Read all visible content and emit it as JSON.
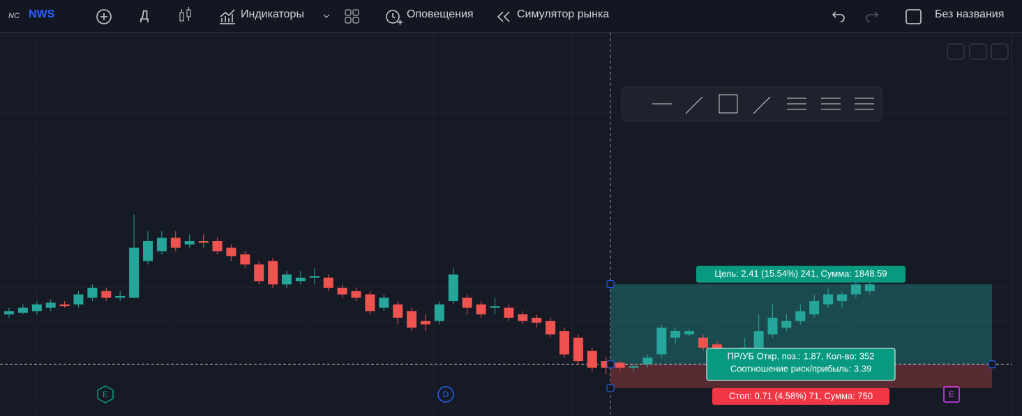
{
  "toolbar": {
    "symbol": "NWS",
    "interval": "Д",
    "indicators": "Индикаторы",
    "alerts": "Оповещения",
    "replay": "Симулятор рынка",
    "layout": "Без названия"
  },
  "chart_data": {
    "type": "candlestick",
    "ylim": [
      13.95,
      25.35
    ],
    "ohlc": [
      [
        17.0,
        17.2,
        16.9,
        17.1
      ],
      [
        17.05,
        17.3,
        17.0,
        17.2
      ],
      [
        17.1,
        17.4,
        17.0,
        17.3
      ],
      [
        17.2,
        17.45,
        17.1,
        17.35
      ],
      [
        17.3,
        17.4,
        17.2,
        17.25
      ],
      [
        17.3,
        17.7,
        17.2,
        17.6
      ],
      [
        17.5,
        17.9,
        17.4,
        17.8
      ],
      [
        17.7,
        17.8,
        17.4,
        17.5
      ],
      [
        17.5,
        17.7,
        17.4,
        17.55
      ],
      [
        17.5,
        20.0,
        17.5,
        19.0
      ],
      [
        18.6,
        19.5,
        18.5,
        19.2
      ],
      [
        18.9,
        19.5,
        18.8,
        19.3
      ],
      [
        19.3,
        19.5,
        18.9,
        19.0
      ],
      [
        19.1,
        19.4,
        19.0,
        19.2
      ],
      [
        19.2,
        19.4,
        19.0,
        19.15
      ],
      [
        19.2,
        19.3,
        18.8,
        18.9
      ],
      [
        19.0,
        19.1,
        18.6,
        18.75
      ],
      [
        18.8,
        18.9,
        18.4,
        18.5
      ],
      [
        18.5,
        18.6,
        17.9,
        18.0
      ],
      [
        18.6,
        18.7,
        17.8,
        17.9
      ],
      [
        17.9,
        18.3,
        17.8,
        18.2
      ],
      [
        18.0,
        18.3,
        17.9,
        18.1
      ],
      [
        18.1,
        18.4,
        17.9,
        18.15
      ],
      [
        18.1,
        18.2,
        17.7,
        17.8
      ],
      [
        17.8,
        17.9,
        17.5,
        17.6
      ],
      [
        17.7,
        17.8,
        17.4,
        17.5
      ],
      [
        17.6,
        17.7,
        17.0,
        17.1
      ],
      [
        17.2,
        17.6,
        17.1,
        17.5
      ],
      [
        17.3,
        17.4,
        16.7,
        16.9
      ],
      [
        17.1,
        17.2,
        16.5,
        16.6
      ],
      [
        16.8,
        17.0,
        16.5,
        16.7
      ],
      [
        16.8,
        17.4,
        16.7,
        17.3
      ],
      [
        17.4,
        18.4,
        17.3,
        18.2
      ],
      [
        17.5,
        17.6,
        17.0,
        17.2
      ],
      [
        17.3,
        17.4,
        16.9,
        17.0
      ],
      [
        17.2,
        17.5,
        17.0,
        17.25
      ],
      [
        17.2,
        17.3,
        16.8,
        16.9
      ],
      [
        17.0,
        17.1,
        16.7,
        16.8
      ],
      [
        16.9,
        17.0,
        16.6,
        16.75
      ],
      [
        16.8,
        16.9,
        16.3,
        16.4
      ],
      [
        16.5,
        16.6,
        15.7,
        15.8
      ],
      [
        16.3,
        16.4,
        15.5,
        15.6
      ],
      [
        15.9,
        16.0,
        15.3,
        15.4
      ],
      [
        15.6,
        15.7,
        15.2,
        15.4
      ],
      [
        15.55,
        15.6,
        15.3,
        15.4
      ],
      [
        15.4,
        15.5,
        15.3,
        15.45
      ],
      [
        15.5,
        15.8,
        15.4,
        15.7
      ],
      [
        15.8,
        16.7,
        15.7,
        16.6
      ],
      [
        16.3,
        16.6,
        16.1,
        16.5
      ],
      [
        16.4,
        16.55,
        16.35,
        16.5
      ],
      [
        16.3,
        16.4,
        15.9,
        16.0
      ],
      [
        16.1,
        16.2,
        15.8,
        15.9
      ],
      [
        15.8,
        15.9,
        15.5,
        15.6
      ],
      [
        15.7,
        16.3,
        15.6,
        16.0
      ],
      [
        16.0,
        17.0,
        15.9,
        16.5
      ],
      [
        16.4,
        17.3,
        16.3,
        16.9
      ],
      [
        16.6,
        17.0,
        16.5,
        16.8
      ],
      [
        16.8,
        17.3,
        16.7,
        17.1
      ],
      [
        17.0,
        17.6,
        16.9,
        17.4
      ],
      [
        17.3,
        17.8,
        17.2,
        17.6
      ],
      [
        17.4,
        17.7,
        17.2,
        17.6
      ],
      [
        17.6,
        18.0,
        17.5,
        17.9
      ],
      [
        17.7,
        18.0,
        17.6,
        17.9
      ]
    ],
    "up_color": "#26a69a",
    "down_color": "#ef5350",
    "position": {
      "entry": 15.5,
      "target": 17.91,
      "stop": 14.79,
      "target_label": "Цель: 2.41 (15.54%) 241, Сумма: 1848.59",
      "pnl_label": "ПР/УБ Откр. поз.: 1.87, Кол-во: 352",
      "ratio_label": "Соотношение риск/прибыль: 3.39",
      "stop_label": "Стоп: 0.71 (4.58%) 71, Сумма: 750"
    },
    "events": [
      "E",
      "D",
      "E"
    ]
  }
}
